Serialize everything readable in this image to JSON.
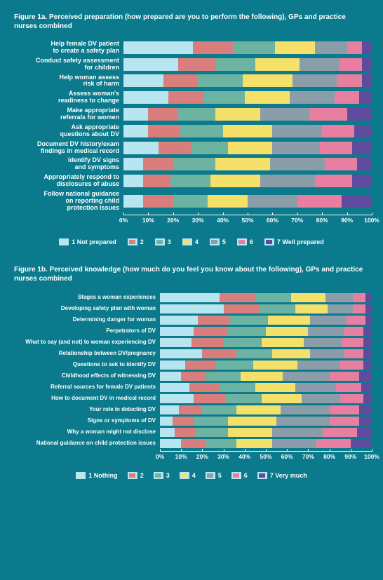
{
  "colors": {
    "c1": "#b8e6f0",
    "c2": "#d97d7d",
    "c3": "#6cb3a2",
    "c4": "#f5e06a",
    "c5": "#8a9da8",
    "c6": "#e87fa0",
    "c7": "#5e4b9e"
  },
  "fig1a": {
    "title": "Figure 1a. Perceived preparation (how prepared are you to perform the following), GPs and practice nurses combined",
    "legend": [
      {
        "key": "c1",
        "label": "1 Not prepared"
      },
      {
        "key": "c2",
        "label": "2"
      },
      {
        "key": "c3",
        "label": "3"
      },
      {
        "key": "c4",
        "label": "4"
      },
      {
        "key": "c5",
        "label": "5"
      },
      {
        "key": "c6",
        "label": "6"
      },
      {
        "key": "c7",
        "label": "7 Well prepared"
      }
    ],
    "rows": [
      {
        "label": "Help female DV patient\nto create a safety plan",
        "v": [
          28,
          16,
          17,
          16,
          13,
          6,
          4
        ]
      },
      {
        "label": "Conduct safety assessment\nfor children",
        "v": [
          22,
          15,
          16,
          18,
          16,
          9,
          4
        ]
      },
      {
        "label": "Help woman assess\nrisk of harm",
        "v": [
          16,
          14,
          18,
          20,
          18,
          10,
          4
        ]
      },
      {
        "label": "Assess woman's\nreadiness to change",
        "v": [
          18,
          14,
          17,
          18,
          18,
          10,
          5
        ]
      },
      {
        "label": "Make appropriate\nreferrals for women",
        "v": [
          10,
          12,
          15,
          18,
          20,
          15,
          10
        ]
      },
      {
        "label": "Ask appropriate\nquestions about DV",
        "v": [
          10,
          13,
          17,
          20,
          20,
          13,
          7
        ]
      },
      {
        "label": "Document DV history/exam\nfindings in medical record",
        "v": [
          14,
          13,
          15,
          18,
          19,
          13,
          8
        ]
      },
      {
        "label": "Identify DV signs\nand symptoms",
        "v": [
          8,
          12,
          17,
          22,
          22,
          13,
          6
        ]
      },
      {
        "label": "Appropriately respond to\ndisclosures of abuse",
        "v": [
          8,
          11,
          16,
          20,
          22,
          15,
          8
        ]
      },
      {
        "label": "Follow national guidance\non reporting child\nprotection issues",
        "v": [
          8,
          12,
          14,
          16,
          20,
          18,
          12
        ]
      }
    ]
  },
  "fig1b": {
    "title": "Figure 1b. Perceived knowledge (how much do you feel you know about the following), GPs and practice nurses combined",
    "legend": [
      {
        "key": "c1",
        "label": "1 Nothing"
      },
      {
        "key": "c2",
        "label": "2"
      },
      {
        "key": "c3",
        "label": "3"
      },
      {
        "key": "c4",
        "label": "4"
      },
      {
        "key": "c5",
        "label": "5"
      },
      {
        "key": "c6",
        "label": "6"
      },
      {
        "key": "c7",
        "label": "7 Very much"
      }
    ],
    "rows": [
      {
        "label": "Stages a woman experiences",
        "v": [
          28,
          17,
          17,
          16,
          13,
          6,
          3
        ]
      },
      {
        "label": "Developing safety plan with woman",
        "v": [
          30,
          17,
          17,
          15,
          12,
          6,
          3
        ]
      },
      {
        "label": "Determining danger for woman",
        "v": [
          18,
          15,
          18,
          20,
          17,
          9,
          3
        ]
      },
      {
        "label": "Perpetrators of DV",
        "v": [
          16,
          16,
          18,
          20,
          17,
          9,
          4
        ]
      },
      {
        "label": "What to say (and not) to woman experiencing DV",
        "v": [
          15,
          15,
          18,
          20,
          18,
          10,
          4
        ]
      },
      {
        "label": "Relationship between DV/pregnancy",
        "v": [
          20,
          16,
          17,
          18,
          16,
          9,
          4
        ]
      },
      {
        "label": "Questions to ask to identify DV",
        "v": [
          12,
          14,
          18,
          21,
          20,
          11,
          4
        ]
      },
      {
        "label": "Childhood effects of witnessing DV",
        "v": [
          10,
          12,
          16,
          20,
          22,
          14,
          6
        ]
      },
      {
        "label": "Referral sources for female DV patients",
        "v": [
          14,
          14,
          17,
          19,
          19,
          12,
          5
        ]
      },
      {
        "label": "How to document DV in medical record",
        "v": [
          16,
          15,
          17,
          19,
          18,
          11,
          4
        ]
      },
      {
        "label": "Your role in detecting DV",
        "v": [
          9,
          11,
          16,
          21,
          23,
          14,
          6
        ]
      },
      {
        "label": "Signs or symptoms of DV",
        "v": [
          6,
          10,
          16,
          23,
          25,
          14,
          6
        ]
      },
      {
        "label": "Why a woman might not disclose",
        "v": [
          7,
          10,
          15,
          21,
          24,
          16,
          7
        ]
      },
      {
        "label": "National guidance on child protection issues",
        "v": [
          10,
          12,
          14,
          17,
          21,
          16,
          10
        ]
      }
    ]
  },
  "axis": {
    "ticks": [
      0,
      10,
      20,
      30,
      40,
      50,
      60,
      70,
      80,
      90,
      100
    ]
  }
}
